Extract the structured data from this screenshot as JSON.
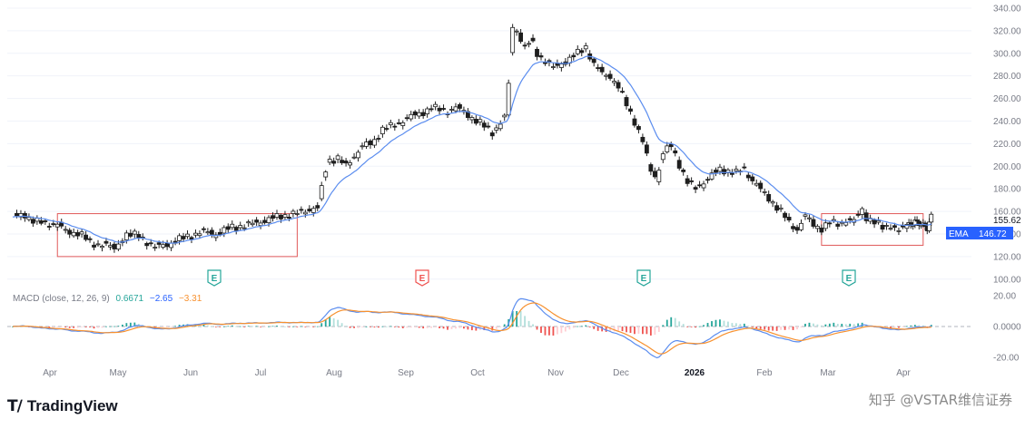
{
  "chart_data": {
    "type": "candlestick",
    "price_axis": {
      "ticks": [
        "340.00",
        "320.00",
        "300.00",
        "280.00",
        "260.00",
        "240.00",
        "220.00",
        "200.00",
        "180.00",
        "160.00",
        "140.00",
        "120.00",
        "100.00"
      ],
      "values": [
        340,
        320,
        300,
        280,
        260,
        240,
        220,
        200,
        180,
        160,
        140,
        120,
        100
      ],
      "ylim": [
        95,
        344
      ]
    },
    "macd_axis": {
      "ticks": [
        "20.00",
        "0.0000",
        "-20.00"
      ],
      "values": [
        20,
        0,
        -20
      ],
      "ylim": [
        -24,
        26
      ]
    },
    "x_axis": {
      "labels": [
        "Apr",
        "May",
        "Jun",
        "Jul",
        "Aug",
        "Sep",
        "Oct",
        "Nov",
        "Dec",
        "2026",
        "Feb",
        "Mar",
        "Apr"
      ],
      "bold": [
        false,
        false,
        false,
        false,
        false,
        false,
        false,
        false,
        false,
        true,
        false,
        false,
        false
      ]
    },
    "price_label": "155.62",
    "ema_label": "EMA",
    "ema_value": "146.72",
    "macd": {
      "title": "MACD (close, 12, 26, 9)",
      "hist": "0.6671",
      "macd": "−2.65",
      "signal": "−3.31"
    },
    "earnings_marker": "E",
    "colors": {
      "up": "#26a69a",
      "down": "#ef5350",
      "ema": "#5b8def",
      "signal": "#f7912f",
      "box": "#e05a5a",
      "candle": "#1e1e1e",
      "grid": "#f0f3fa"
    }
  },
  "branding": {
    "logo_mark": "Τ∕",
    "logo_text": "TradingView",
    "watermark": "知乎 @VSTAR维信证券"
  }
}
